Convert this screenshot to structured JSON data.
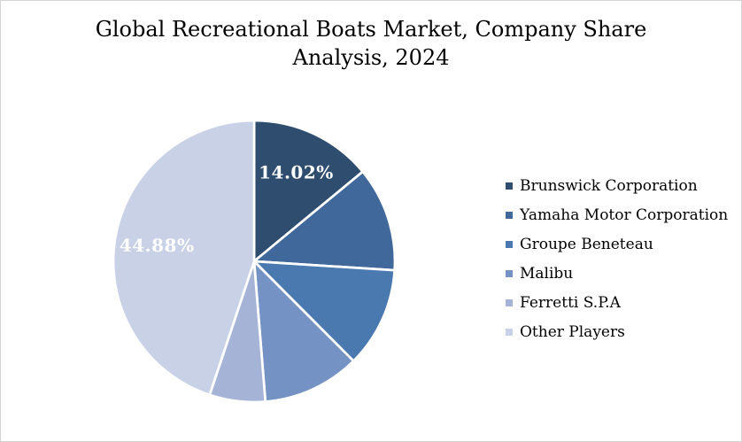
{
  "chart_data": {
    "type": "pie",
    "title": "Global Recreational Boats Market, Company Share Analysis, 2024",
    "legend_position": "right",
    "direction": "clockwise",
    "start_angle_deg": 0,
    "data_label_color": "#FFFFFF",
    "background_color": "#FFFFFF",
    "border_color": "#D4D4D4",
    "series": [
      {
        "name": "Brunswick Corporation",
        "value": 14.02,
        "color": "#2F4E6F",
        "data_label": "14.02%"
      },
      {
        "name": "Yamaha Motor Corporation",
        "value": 12.0,
        "color": "#41689A",
        "data_label": ""
      },
      {
        "name": "Groupe Beneteau",
        "value": 11.5,
        "color": "#4A79AF",
        "data_label": ""
      },
      {
        "name": "Malibu",
        "value": 11.2,
        "color": "#7592C4",
        "data_label": ""
      },
      {
        "name": "Ferretti S.P.A",
        "value": 6.4,
        "color": "#A5B4D6",
        "data_label": ""
      },
      {
        "name": "Other Players",
        "value": 44.88,
        "color": "#C8D1E6",
        "data_label": "44.88%"
      }
    ]
  }
}
